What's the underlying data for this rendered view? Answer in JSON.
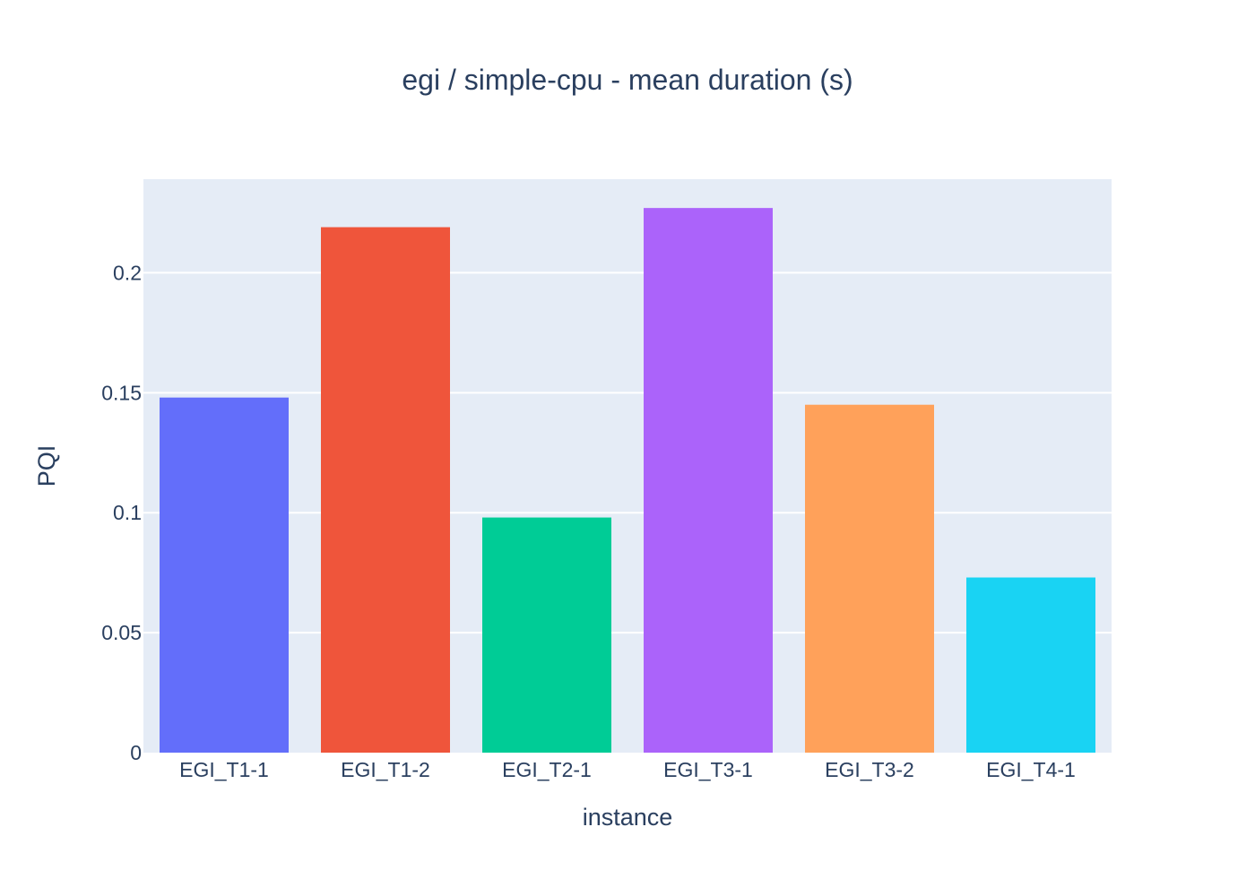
{
  "chart_data": {
    "type": "bar",
    "title": "egi / simple-cpu - mean duration (s)",
    "xlabel": "instance",
    "ylabel": "PQI",
    "categories": [
      "EGI_T1-1",
      "EGI_T1-2",
      "EGI_T2-1",
      "EGI_T3-1",
      "EGI_T3-2",
      "EGI_T4-1"
    ],
    "values": [
      0.148,
      0.219,
      0.098,
      0.227,
      0.145,
      0.073
    ],
    "colors": [
      "#636efa",
      "#ef553b",
      "#00cc96",
      "#ab63fa",
      "#ffa15a",
      "#19d3f3"
    ],
    "ylim": [
      0,
      0.239
    ],
    "yticks": [
      0,
      0.05,
      0.1,
      0.15,
      0.2
    ],
    "ytick_labels": [
      "0",
      "0.05",
      "0.1",
      "0.15",
      "0.2"
    ],
    "grid": true,
    "legend": "none",
    "plot_background": "#e5ecf6"
  }
}
